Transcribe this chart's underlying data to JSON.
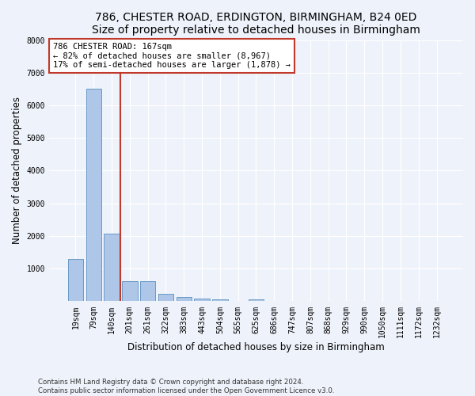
{
  "title": "786, CHESTER ROAD, ERDINGTON, BIRMINGHAM, B24 0ED",
  "subtitle": "Size of property relative to detached houses in Birmingham",
  "xlabel": "Distribution of detached houses by size in Birmingham",
  "ylabel": "Number of detached properties",
  "footnote1": "Contains HM Land Registry data © Crown copyright and database right 2024.",
  "footnote2": "Contains public sector information licensed under the Open Government Licence v3.0.",
  "bar_categories": [
    "19sqm",
    "79sqm",
    "140sqm",
    "201sqm",
    "261sqm",
    "322sqm",
    "383sqm",
    "443sqm",
    "504sqm",
    "565sqm",
    "625sqm",
    "686sqm",
    "747sqm",
    "807sqm",
    "868sqm",
    "929sqm",
    "990sqm",
    "1050sqm",
    "1111sqm",
    "1172sqm",
    "1232sqm"
  ],
  "bar_values": [
    1300,
    6500,
    2080,
    620,
    620,
    240,
    140,
    90,
    60,
    0,
    60,
    0,
    0,
    0,
    0,
    0,
    0,
    0,
    0,
    0,
    0
  ],
  "bar_color": "#aec6e8",
  "bar_edge_color": "#5a8fc0",
  "property_label": "786 CHESTER ROAD: 167sqm",
  "annotation_line1": "← 82% of detached houses are smaller (8,967)",
  "annotation_line2": "17% of semi-detached houses are larger (1,878) →",
  "vline_color": "#c0392b",
  "annotation_box_color": "#c0392b",
  "ylim": [
    0,
    8000
  ],
  "yticks": [
    0,
    1000,
    2000,
    3000,
    4000,
    5000,
    6000,
    7000,
    8000
  ],
  "background_color": "#eef2fa",
  "grid_color": "#ffffff",
  "title_fontsize": 10,
  "axis_label_fontsize": 8.5,
  "tick_fontsize": 7,
  "annotation_fontsize": 7.5
}
